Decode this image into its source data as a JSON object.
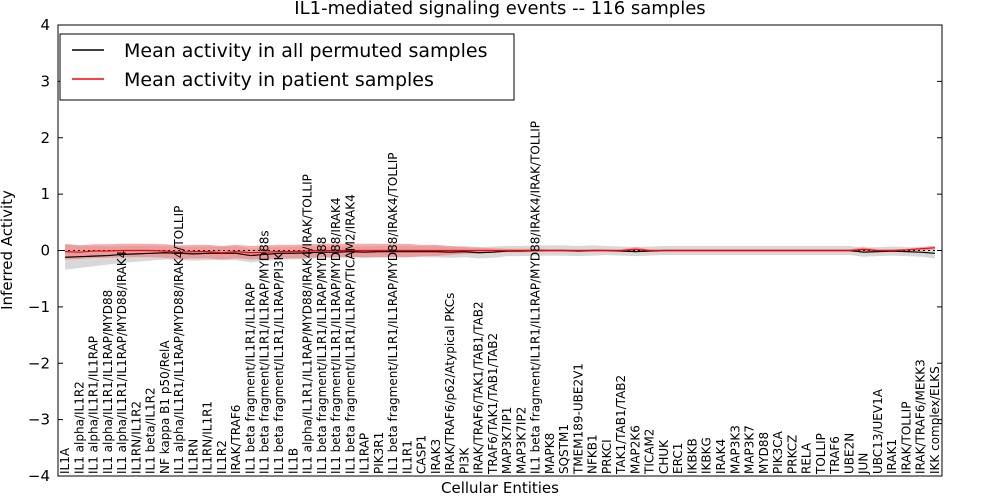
{
  "chart_data": {
    "type": "line",
    "title": "IL1-mediated signaling events -- 116 samples",
    "xlabel": "Cellular Entities",
    "ylabel": "Inferred Activity",
    "ylim": [
      -4,
      4
    ],
    "yticks": [
      -4,
      -3,
      -2,
      -1,
      0,
      1,
      2,
      3,
      4
    ],
    "grid": false,
    "legend_position": "top-left",
    "categories": [
      "IL1A",
      "IL1 alpha/IL1R2",
      "IL1 alpha/IL1R1/IL1RAP",
      "IL1 alpha/IL1R1/IL1RAP/MYD88",
      "IL1 alpha/IL1R1/IL1RAP/MYD88/IRAK4",
      "IL1RN/IL1R2",
      "IL1 beta/IL1R2",
      "NF kappa B1 p50/RelA",
      "IL1 alpha/IL1R1/IL1RAP/MYD88/IRAK4/TOLLIP",
      "IL1RN",
      "IL1RN/IL1R1",
      "IL1R2",
      "IRAK/TRAF6",
      "IL1 beta fragment/IL1R1/IL1RAP",
      "IL1 beta fragment/IL1R1/IL1RAP/MYD88s",
      "IL1 beta fragment/IL1R1/IL1RAP/PI3K",
      "IL1B",
      "IL1 alpha/IL1R1/IL1RAP/MYD88/IRAK4/IRAK/TOLLIP",
      "IL1 beta fragment/IL1R1/IL1RAP/MYD88",
      "IL1 beta fragment/IL1R1/IL1RAP/MYD88/IRAK4",
      "IL1 beta fragment/IL1R1/IL1RAP/TICAM2/IRAK4",
      "IL1RAP",
      "PIK3R1",
      "IL1 beta fragment/IL1R1/IL1RAP/MYD88/IRAK4/TOLLIP",
      "IL1R1",
      "CASP1",
      "IRAK3",
      "IRAK/TRAF6/p62/Atypical PKCs",
      "PI3K",
      "IRAK/TRAF6/TAK1/TAB1/TAB2",
      "TRAF6/TAK1/TAB1/TAB2",
      "MAP3K7IP1",
      "MAP3K7IP2",
      "IL1 beta fragment/IL1R1/IL1RAP/MYD88/IRAK4/IRAK/TOLLIP",
      "MAPK8",
      "SQSTM1",
      "TMEM189-UBE2V1",
      "NFKB1",
      "PRKCI",
      "TAK1/TAB1/TAB2",
      "MAP2K6",
      "TICAM2",
      "CHUK",
      "ERC1",
      "IKBKB",
      "IKBKG",
      "IRAK4",
      "MAP3K3",
      "MAP3K7",
      "MYD88",
      "PIK3CA",
      "PRKCZ",
      "RELA",
      "TOLLIP",
      "TRAF6",
      "UBE2N",
      "JUN",
      "UBC13/UEV1A",
      "IRAK1",
      "IRAK/TOLLIP",
      "IRAK/TRAF6/MEKK3",
      "IKK complex/ELKS"
    ],
    "series": [
      {
        "name": "Mean activity in all permuted samples",
        "color": "#000000",
        "band_color": "#c8c8c8",
        "values": [
          -0.12,
          -0.11,
          -0.1,
          -0.09,
          -0.07,
          -0.06,
          -0.05,
          -0.04,
          -0.05,
          -0.06,
          -0.05,
          -0.05,
          -0.05,
          -0.09,
          -0.07,
          -0.05,
          -0.05,
          -0.04,
          -0.03,
          -0.03,
          -0.02,
          -0.03,
          -0.02,
          -0.02,
          -0.02,
          -0.02,
          -0.02,
          -0.03,
          -0.02,
          -0.04,
          -0.03,
          -0.01,
          -0.01,
          0.0,
          0.0,
          0.0,
          -0.01,
          0.0,
          0.0,
          -0.01,
          -0.02,
          -0.01,
          0.0,
          0.0,
          0.0,
          0.0,
          0.0,
          0.0,
          0.0,
          0.0,
          0.0,
          0.0,
          0.0,
          0.0,
          0.0,
          0.0,
          -0.03,
          -0.02,
          -0.01,
          -0.02,
          -0.03,
          -0.05
        ],
        "band": [
          0.22,
          0.2,
          0.18,
          0.16,
          0.15,
          0.14,
          0.13,
          0.12,
          0.12,
          0.12,
          0.12,
          0.12,
          0.12,
          0.12,
          0.12,
          0.11,
          0.11,
          0.11,
          0.1,
          0.1,
          0.1,
          0.1,
          0.1,
          0.1,
          0.1,
          0.1,
          0.1,
          0.1,
          0.1,
          0.1,
          0.1,
          0.09,
          0.09,
          0.09,
          0.09,
          0.09,
          0.09,
          0.09,
          0.08,
          0.08,
          0.08,
          0.08,
          0.08,
          0.08,
          0.08,
          0.08,
          0.08,
          0.08,
          0.08,
          0.08,
          0.08,
          0.08,
          0.08,
          0.08,
          0.08,
          0.08,
          0.08,
          0.08,
          0.08,
          0.08,
          0.08,
          0.09
        ]
      },
      {
        "name": "Mean activity in patient samples",
        "color": "#ff0000",
        "band_color": "#f08080",
        "values": [
          -0.02,
          -0.03,
          -0.01,
          -0.01,
          0.0,
          0.0,
          0.0,
          -0.01,
          -0.03,
          -0.02,
          -0.02,
          -0.04,
          -0.02,
          -0.04,
          -0.03,
          -0.02,
          -0.02,
          -0.01,
          0.0,
          0.0,
          0.0,
          0.0,
          0.0,
          0.0,
          0.0,
          0.0,
          0.0,
          0.0,
          0.0,
          0.0,
          0.0,
          0.0,
          0.0,
          0.0,
          0.0,
          0.0,
          0.0,
          0.0,
          0.0,
          0.0,
          0.02,
          0.0,
          0.0,
          0.0,
          0.0,
          0.0,
          0.0,
          0.0,
          0.0,
          0.0,
          0.0,
          0.0,
          0.0,
          0.0,
          0.0,
          0.0,
          0.02,
          0.0,
          0.0,
          0.01,
          0.03,
          0.05
        ],
        "band": [
          0.14,
          0.12,
          0.12,
          0.12,
          0.12,
          0.12,
          0.12,
          0.12,
          0.12,
          0.12,
          0.12,
          0.12,
          0.12,
          0.12,
          0.12,
          0.12,
          0.12,
          0.12,
          0.12,
          0.12,
          0.12,
          0.12,
          0.12,
          0.12,
          0.12,
          0.1,
          0.1,
          0.08,
          0.06,
          0.05,
          0.04,
          0.03,
          0.03,
          0.03,
          0.02,
          0.02,
          0.02,
          0.02,
          0.02,
          0.02,
          0.04,
          0.02,
          0.02,
          0.02,
          0.02,
          0.02,
          0.02,
          0.02,
          0.02,
          0.02,
          0.02,
          0.02,
          0.02,
          0.02,
          0.02,
          0.02,
          0.04,
          0.02,
          0.02,
          0.02,
          0.03,
          0.03
        ]
      }
    ]
  }
}
